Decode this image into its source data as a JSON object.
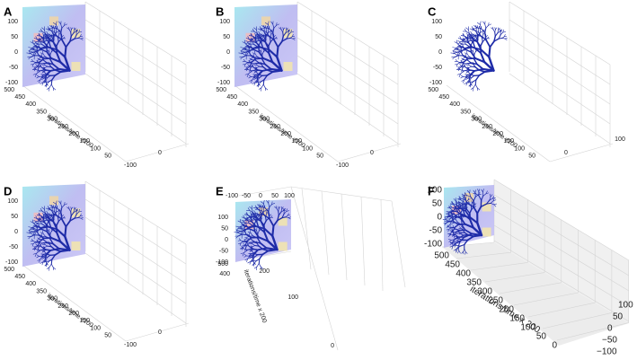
{
  "panels": [
    {
      "label": "A",
      "z_ticks": [
        "100",
        "50",
        "0",
        "-50",
        "-100"
      ],
      "y_ticks": [
        "500",
        "450",
        "400",
        "350",
        "300",
        "250",
        "200",
        "150",
        "100",
        "50"
      ],
      "y_axis_label": "iterations/time x200",
      "x_ticks": [
        "-100",
        "0"
      ]
    },
    {
      "label": "B",
      "z_ticks": [
        "100",
        "50",
        "0",
        "-50",
        "-100"
      ],
      "y_ticks": [
        "500",
        "450",
        "400",
        "350",
        "300",
        "250",
        "200",
        "150",
        "100",
        "50"
      ],
      "y_axis_label": "iterations/time x200",
      "x_ticks": [
        "-100",
        "0"
      ]
    },
    {
      "label": "C",
      "z_ticks": [
        "100",
        "50",
        "0",
        "-50",
        "-100"
      ],
      "y_ticks": [
        "500",
        "450",
        "400",
        "350",
        "300",
        "250",
        "200",
        "150",
        "100",
        "50"
      ],
      "y_axis_label": "iterations/time x200",
      "x_ticks": [
        "0",
        "100"
      ]
    },
    {
      "label": "D",
      "z_ticks": [
        "100",
        "50",
        "0",
        "-50",
        "-100"
      ],
      "y_ticks": [
        "500",
        "450",
        "400",
        "350",
        "300",
        "250",
        "200",
        "150",
        "100",
        "50"
      ],
      "y_axis_label": "iterations/time x200",
      "x_ticks": [
        "-100",
        "0"
      ]
    },
    {
      "label": "E",
      "top_ticks": [
        "-100",
        "-50",
        "0",
        "50",
        "100"
      ],
      "z_ticks": [
        "100",
        "50",
        "0",
        "-50",
        "-100"
      ],
      "y_ticks": [
        "500",
        "400",
        "200",
        "100",
        "0"
      ],
      "y_axis_label": "iterations/time x 200"
    },
    {
      "label": "F",
      "z_ticks": [
        "100",
        "50",
        "0",
        "-50",
        "-100"
      ],
      "y_ticks": [
        "500",
        "450",
        "400",
        "350",
        "300",
        "250",
        "200",
        "150",
        "100",
        "50",
        "0"
      ],
      "y_axis_label": "iterations/time x 200",
      "x_ticks": [
        "−100",
        "−50",
        "0",
        "50",
        "100"
      ]
    }
  ]
}
